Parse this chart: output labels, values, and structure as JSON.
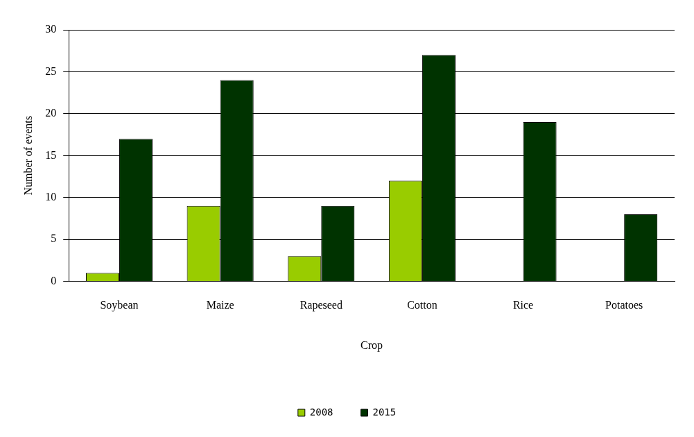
{
  "chart_data": {
    "type": "bar",
    "xlabel": "Crop",
    "ylabel": "Number of events",
    "categories": [
      "Soybean",
      "Maize",
      "Rapeseed",
      "Cotton",
      "Rice",
      "Potatoes"
    ],
    "series": [
      {
        "name": "2008",
        "color": "#99cc00",
        "values": [
          1,
          9,
          3,
          12,
          0,
          0
        ]
      },
      {
        "name": "2015",
        "color": "#003300",
        "values": [
          17,
          24,
          9,
          27,
          19,
          8
        ]
      }
    ],
    "ylim": [
      0,
      30
    ],
    "yticks": [
      0,
      5,
      10,
      15,
      20,
      25,
      30
    ],
    "grid": "y",
    "legend": "bottom"
  }
}
